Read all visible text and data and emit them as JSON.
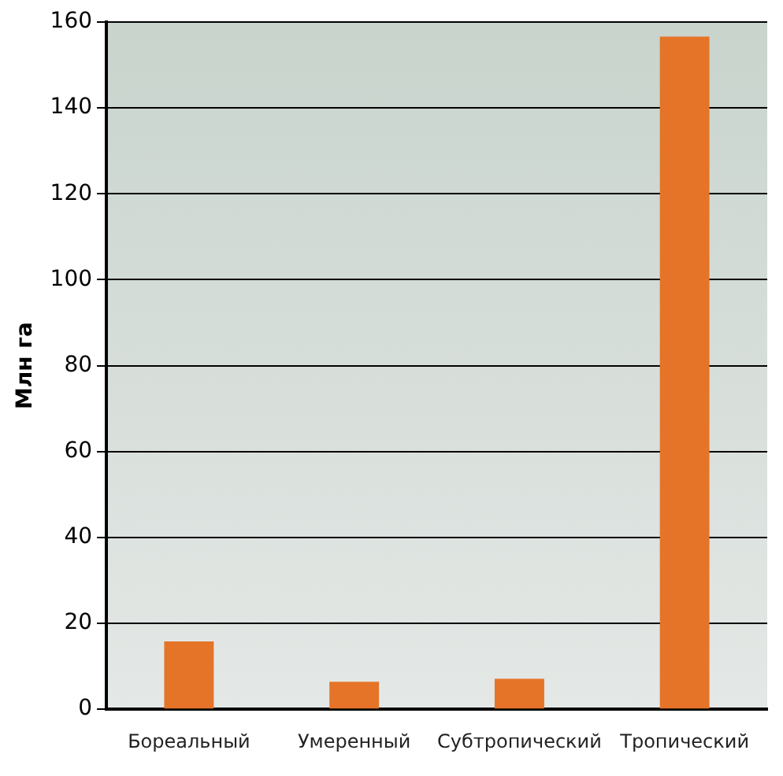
{
  "chart_data": {
    "type": "bar",
    "ylabel": "Млн га",
    "categories": [
      "Бореальный",
      "Умеренный",
      "Субтропический",
      "Тропический"
    ],
    "values": [
      15.8,
      6.4,
      7.1,
      156.6
    ],
    "color": "#e57428",
    "ylim": [
      0,
      160
    ],
    "yticks": [
      0,
      20,
      40,
      60,
      80,
      100,
      120,
      140,
      160
    ],
    "grid": "y"
  }
}
